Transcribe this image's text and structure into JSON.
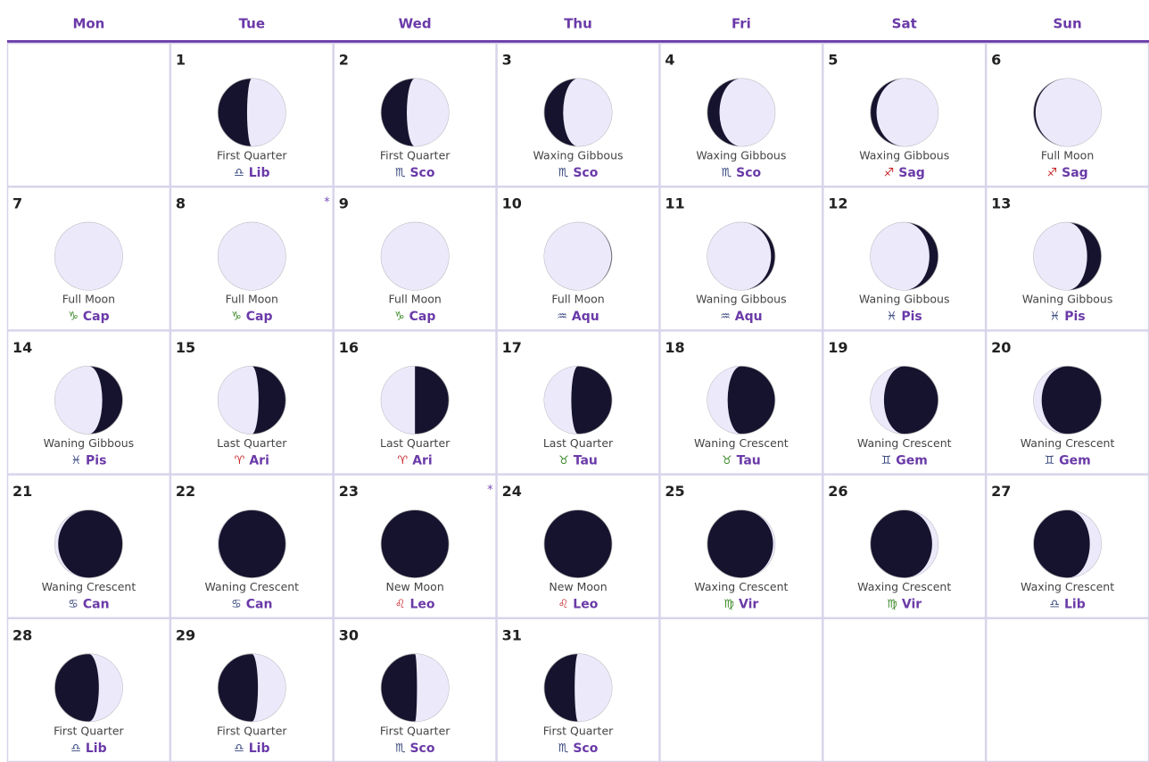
{
  "weekdays": [
    "Mon",
    "Tue",
    "Wed",
    "Thu",
    "Fri",
    "Sat",
    "Sun"
  ],
  "sign_colors": {
    "Lib": "#33447a",
    "Sco": "#33447a",
    "Sag": "#c8282a",
    "Cap": "#3d8a2a",
    "Aqu": "#33447a",
    "Pis": "#33447a",
    "Ari": "#c8282a",
    "Tau": "#3d8a2a",
    "Gem": "#33447a",
    "Can": "#33447a",
    "Leo": "#c8282a",
    "Vir": "#3d8a2a"
  },
  "weeks": [
    [
      null,
      {
        "day": 1,
        "phase": "First Quarter",
        "symbol": "♎",
        "sign": "Lib",
        "illumination": 57,
        "waxing": true
      },
      {
        "day": 2,
        "phase": "First Quarter",
        "symbol": "♏",
        "sign": "Sco",
        "illumination": 62,
        "waxing": true
      },
      {
        "day": 3,
        "phase": "Waxing Gibbous",
        "symbol": "♏",
        "sign": "Sco",
        "illumination": 72,
        "waxing": true
      },
      {
        "day": 4,
        "phase": "Waxing Gibbous",
        "symbol": "♏",
        "sign": "Sco",
        "illumination": 82,
        "waxing": true
      },
      {
        "day": 5,
        "phase": "Waxing Gibbous",
        "symbol": "♐",
        "sign": "Sag",
        "illumination": 91,
        "waxing": true
      },
      {
        "day": 6,
        "phase": "Full Moon",
        "symbol": "♐",
        "sign": "Sag",
        "illumination": 97,
        "waxing": true
      }
    ],
    [
      {
        "day": 7,
        "phase": "Full Moon",
        "symbol": "♑",
        "sign": "Cap",
        "illumination": 100,
        "waxing": true
      },
      {
        "day": 8,
        "phase": "Full Moon",
        "symbol": "♑",
        "sign": "Cap",
        "illumination": 100,
        "waxing": false,
        "marker": "*"
      },
      {
        "day": 9,
        "phase": "Full Moon",
        "symbol": "♑",
        "sign": "Cap",
        "illumination": 100,
        "waxing": false
      },
      {
        "day": 10,
        "phase": "Full Moon",
        "symbol": "♒",
        "sign": "Aqu",
        "illumination": 99,
        "waxing": false
      },
      {
        "day": 11,
        "phase": "Waning Gibbous",
        "symbol": "♒",
        "sign": "Aqu",
        "illumination": 94,
        "waxing": false
      },
      {
        "day": 12,
        "phase": "Waning Gibbous",
        "symbol": "♓",
        "sign": "Pis",
        "illumination": 87,
        "waxing": false
      },
      {
        "day": 13,
        "phase": "Waning Gibbous",
        "symbol": "♓",
        "sign": "Pis",
        "illumination": 79,
        "waxing": false
      }
    ],
    [
      {
        "day": 14,
        "phase": "Waning Gibbous",
        "symbol": "♓",
        "sign": "Pis",
        "illumination": 70,
        "waxing": false
      },
      {
        "day": 15,
        "phase": "Last Quarter",
        "symbol": "♈",
        "sign": "Ari",
        "illumination": 60,
        "waxing": false
      },
      {
        "day": 16,
        "phase": "Last Quarter",
        "symbol": "♈",
        "sign": "Ari",
        "illumination": 50,
        "waxing": false
      },
      {
        "day": 17,
        "phase": "Last Quarter",
        "symbol": "♉",
        "sign": "Tau",
        "illumination": 40,
        "waxing": false
      },
      {
        "day": 18,
        "phase": "Waning Crescent",
        "symbol": "♉",
        "sign": "Tau",
        "illumination": 30,
        "waxing": false
      },
      {
        "day": 19,
        "phase": "Waning Crescent",
        "symbol": "♊",
        "sign": "Gem",
        "illumination": 20,
        "waxing": false
      },
      {
        "day": 20,
        "phase": "Waning Crescent",
        "symbol": "♊",
        "sign": "Gem",
        "illumination": 12,
        "waxing": false
      }
    ],
    [
      {
        "day": 21,
        "phase": "Waning Crescent",
        "symbol": "♋",
        "sign": "Can",
        "illumination": 5,
        "waxing": false
      },
      {
        "day": 22,
        "phase": "Waning Crescent",
        "symbol": "♋",
        "sign": "Can",
        "illumination": 1,
        "waxing": false
      },
      {
        "day": 23,
        "phase": "New Moon",
        "symbol": "♌",
        "sign": "Leo",
        "illumination": 0,
        "waxing": false,
        "marker": "*"
      },
      {
        "day": 24,
        "phase": "New Moon",
        "symbol": "♌",
        "sign": "Leo",
        "illumination": 0,
        "waxing": true
      },
      {
        "day": 25,
        "phase": "Waxing Crescent",
        "symbol": "♍",
        "sign": "Vir",
        "illumination": 3,
        "waxing": true
      },
      {
        "day": 26,
        "phase": "Waxing Crescent",
        "symbol": "♍",
        "sign": "Vir",
        "illumination": 9,
        "waxing": true
      },
      {
        "day": 27,
        "phase": "Waxing Crescent",
        "symbol": "♎",
        "sign": "Lib",
        "illumination": 17,
        "waxing": true
      }
    ],
    [
      {
        "day": 28,
        "phase": "First Quarter",
        "symbol": "♎",
        "sign": "Lib",
        "illumination": 35,
        "waxing": true
      },
      {
        "day": 29,
        "phase": "First Quarter",
        "symbol": "♎",
        "sign": "Lib",
        "illumination": 41,
        "waxing": true
      },
      {
        "day": 30,
        "phase": "First Quarter",
        "symbol": "♏",
        "sign": "Sco",
        "illumination": 47,
        "waxing": true
      },
      {
        "day": 31,
        "phase": "First Quarter",
        "symbol": "♏",
        "sign": "Sco",
        "illumination": 55,
        "waxing": true
      },
      null,
      null,
      null
    ]
  ]
}
